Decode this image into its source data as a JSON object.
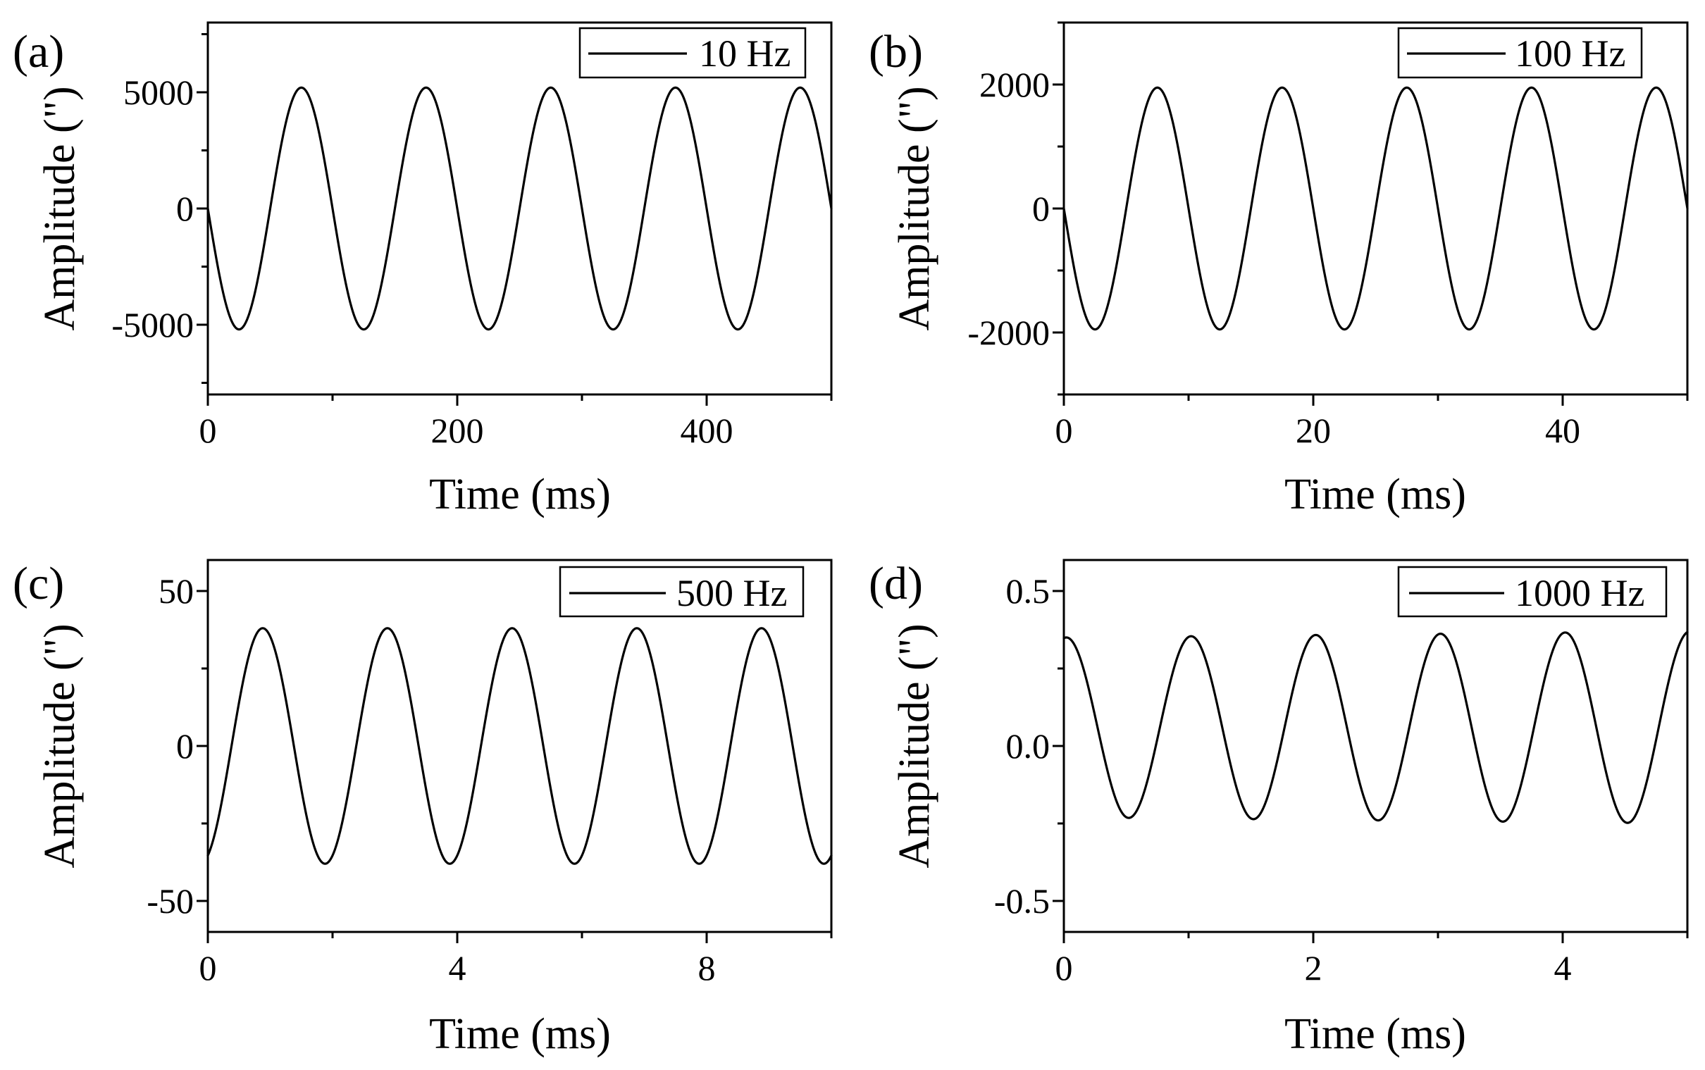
{
  "chart_data": [
    {
      "panel_label": "(a)",
      "type": "line",
      "xlabel": "Time (ms)",
      "ylabel": "Amplitude (\")",
      "xlim": [
        0,
        500
      ],
      "ylim": [
        -8000,
        8000
      ],
      "xticks": [
        0,
        200,
        400
      ],
      "xtick_labels": [
        "0",
        "200",
        "400"
      ],
      "yticks": [
        5000,
        0,
        -5000
      ],
      "ytick_labels": [
        "5000",
        "0",
        "-5000"
      ],
      "legend": "top-right",
      "series": [
        {
          "name": "10 Hz",
          "color": "#000000",
          "waveform": "sine",
          "amplitude": 5200,
          "period": 100,
          "phase": -0.5,
          "offset": 0,
          "amplitude_end": 5200,
          "x": [
            0,
            500
          ]
        }
      ]
    },
    {
      "panel_label": "(b)",
      "type": "line",
      "xlabel": "Time (ms)",
      "ylabel": "Amplitude (\")",
      "xlim": [
        0,
        50
      ],
      "ylim": [
        -3000,
        3000
      ],
      "xticks": [
        0,
        20,
        40
      ],
      "xtick_labels": [
        "0",
        "20",
        "40"
      ],
      "yticks": [
        2000,
        0,
        -2000
      ],
      "ytick_labels": [
        "2000",
        "0",
        "-2000"
      ],
      "legend": "top-right",
      "series": [
        {
          "name": "100 Hz",
          "color": "#000000",
          "waveform": "sine",
          "amplitude": 1950,
          "period": 10,
          "phase": -0.5,
          "offset": 0,
          "amplitude_end": 1950,
          "x": [
            0,
            50
          ]
        }
      ]
    },
    {
      "panel_label": "(c)",
      "type": "line",
      "xlabel": "Time (ms)",
      "ylabel": "Amplitude (\")",
      "xlim": [
        0,
        10
      ],
      "ylim": [
        -60,
        60
      ],
      "xticks": [
        0,
        4,
        8
      ],
      "xtick_labels": [
        "0",
        "4",
        "8"
      ],
      "yticks": [
        50,
        0,
        -50
      ],
      "ytick_labels": [
        "50",
        "0",
        "-50"
      ],
      "legend": "top-right",
      "series": [
        {
          "name": "500 Hz",
          "color": "#000000",
          "waveform": "sine",
          "amplitude": 38,
          "period": 2,
          "phase": -0.19,
          "offset": 0,
          "amplitude_end": 38,
          "x": [
            0,
            10
          ]
        }
      ]
    },
    {
      "panel_label": "(d)",
      "type": "line",
      "xlabel": "Time (ms)",
      "ylabel": "Amplitude (\")",
      "xlim": [
        0,
        5
      ],
      "ylim": [
        -0.6,
        0.6
      ],
      "xticks": [
        0,
        2,
        4
      ],
      "xtick_labels": [
        "0",
        "2",
        "4"
      ],
      "yticks": [
        0.5,
        0.0,
        -0.5
      ],
      "ytick_labels": [
        "0.5",
        "0.0",
        "-0.5"
      ],
      "legend": "top-right",
      "series": [
        {
          "name": "1000 Hz",
          "color": "#000000",
          "waveform": "sine",
          "amplitude": 0.29,
          "period": 1,
          "phase": 0.23,
          "offset": 0.06,
          "amplitude_end": 0.31,
          "x": [
            0,
            5
          ]
        }
      ]
    }
  ]
}
